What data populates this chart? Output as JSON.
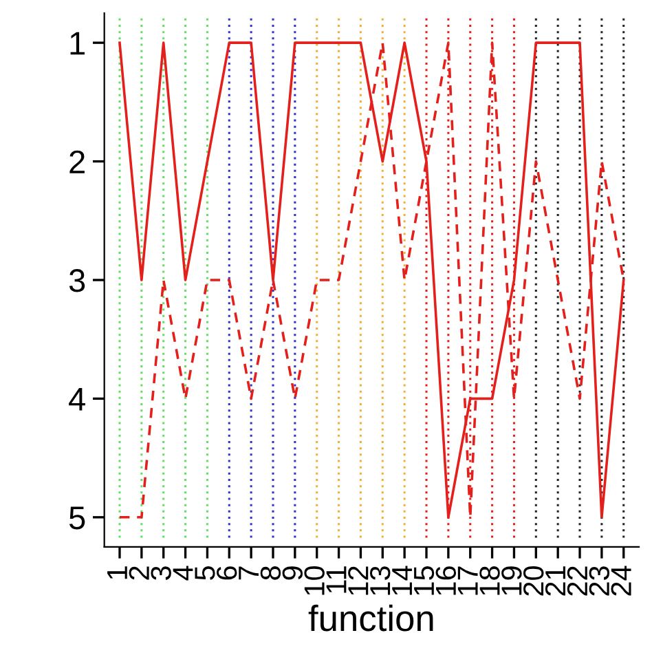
{
  "chart_data": {
    "type": "line",
    "xlabel": "function",
    "categories": [
      "1",
      "2",
      "3",
      "4",
      "5",
      "6",
      "7",
      "8",
      "9",
      "10",
      "11",
      "12",
      "13",
      "14",
      "15",
      "16",
      "17",
      "18",
      "19",
      "20",
      "21",
      "22",
      "23",
      "24"
    ],
    "series": [
      {
        "color": "#e3201b",
        "line_style": "solid",
        "values": [
          1,
          3,
          1,
          3,
          2,
          1,
          1,
          3,
          1,
          1,
          1,
          1,
          2,
          1,
          2,
          5,
          4,
          4,
          3,
          1,
          1,
          1,
          5,
          3
        ]
      },
      {
        "color": "#e3201b",
        "line_style": "dashed",
        "values": [
          5,
          5,
          3,
          4,
          3,
          3,
          4,
          3,
          4,
          3,
          3,
          2,
          1,
          3,
          2,
          1,
          5,
          1,
          4,
          2,
          3,
          4,
          2,
          3
        ]
      }
    ],
    "ylim": [
      5.25,
      0.75
    ],
    "yticks": [
      1,
      2,
      3,
      4,
      5
    ],
    "grid": false,
    "legend": false,
    "marker": "none",
    "ref_lines": [
      {
        "axis": "x",
        "value": "1",
        "color": "#66dd66",
        "line_style": "dotted"
      },
      {
        "axis": "x",
        "value": "2",
        "color": "#66dd66",
        "line_style": "dotted"
      },
      {
        "axis": "x",
        "value": "3",
        "color": "#66dd66",
        "line_style": "dotted"
      },
      {
        "axis": "x",
        "value": "4",
        "color": "#66dd66",
        "line_style": "dotted"
      },
      {
        "axis": "x",
        "value": "5",
        "color": "#66dd66",
        "line_style": "dotted"
      },
      {
        "axis": "x",
        "value": "6",
        "color": "#3333cc",
        "line_style": "dotted"
      },
      {
        "axis": "x",
        "value": "7",
        "color": "#3333cc",
        "line_style": "dotted"
      },
      {
        "axis": "x",
        "value": "8",
        "color": "#3333cc",
        "line_style": "dotted"
      },
      {
        "axis": "x",
        "value": "9",
        "color": "#3333cc",
        "line_style": "dotted"
      },
      {
        "axis": "x",
        "value": "10",
        "color": "#f0b040",
        "line_style": "dotted"
      },
      {
        "axis": "x",
        "value": "11",
        "color": "#f0b040",
        "line_style": "dotted"
      },
      {
        "axis": "x",
        "value": "12",
        "color": "#f0b040",
        "line_style": "dotted"
      },
      {
        "axis": "x",
        "value": "13",
        "color": "#f0b040",
        "line_style": "dotted"
      },
      {
        "axis": "x",
        "value": "14",
        "color": "#f0b040",
        "line_style": "dotted"
      },
      {
        "axis": "x",
        "value": "15",
        "color": "#e3201b",
        "line_style": "dotted"
      },
      {
        "axis": "x",
        "value": "16",
        "color": "#e3201b",
        "line_style": "dotted"
      },
      {
        "axis": "x",
        "value": "17",
        "color": "#e3201b",
        "line_style": "dotted"
      },
      {
        "axis": "x",
        "value": "18",
        "color": "#e3201b",
        "line_style": "dotted"
      },
      {
        "axis": "x",
        "value": "19",
        "color": "#e3201b",
        "line_style": "dotted"
      },
      {
        "axis": "x",
        "value": "20",
        "color": "#222222",
        "line_style": "dotted"
      },
      {
        "axis": "x",
        "value": "21",
        "color": "#222222",
        "line_style": "dotted"
      },
      {
        "axis": "x",
        "value": "22",
        "color": "#222222",
        "line_style": "dotted"
      },
      {
        "axis": "x",
        "value": "23",
        "color": "#222222",
        "line_style": "dotted"
      },
      {
        "axis": "x",
        "value": "24",
        "color": "#222222",
        "line_style": "dotted"
      }
    ]
  }
}
